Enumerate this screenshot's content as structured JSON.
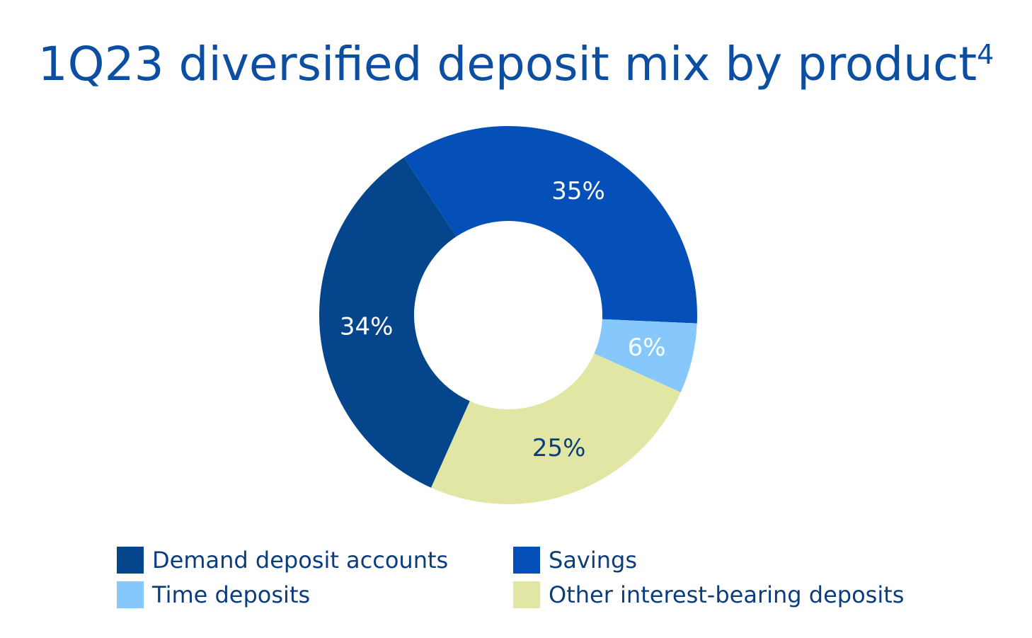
{
  "title": {
    "main": "1Q23 diversified deposit mix by product",
    "footnote": "4"
  },
  "chart_data": {
    "type": "pie",
    "title": "1Q23 diversified deposit mix by product",
    "slices": [
      {
        "name": "Savings",
        "value": 35,
        "label": "35%",
        "color": "#0450b8",
        "label_color": "#ffffff"
      },
      {
        "name": "Time deposits",
        "value": 6,
        "label": "6%",
        "color": "#86c8fb",
        "label_color": "#ffffff"
      },
      {
        "name": "Other interest-bearing deposits",
        "value": 25,
        "label": "25%",
        "color": "#e2e6a4",
        "label_color": "#0b3d7e"
      },
      {
        "name": "Demand deposit accounts",
        "value": 34,
        "label": "34%",
        "color": "#05458c",
        "label_color": "#ffffff"
      }
    ],
    "legend_position": "bottom",
    "donut": true
  },
  "legend": [
    {
      "label": "Demand deposit accounts",
      "color": "#05458c"
    },
    {
      "label": "Savings",
      "color": "#0450b8"
    },
    {
      "label": "Time deposits",
      "color": "#86c8fb"
    },
    {
      "label": "Other interest-bearing deposits",
      "color": "#e2e6a4"
    }
  ]
}
